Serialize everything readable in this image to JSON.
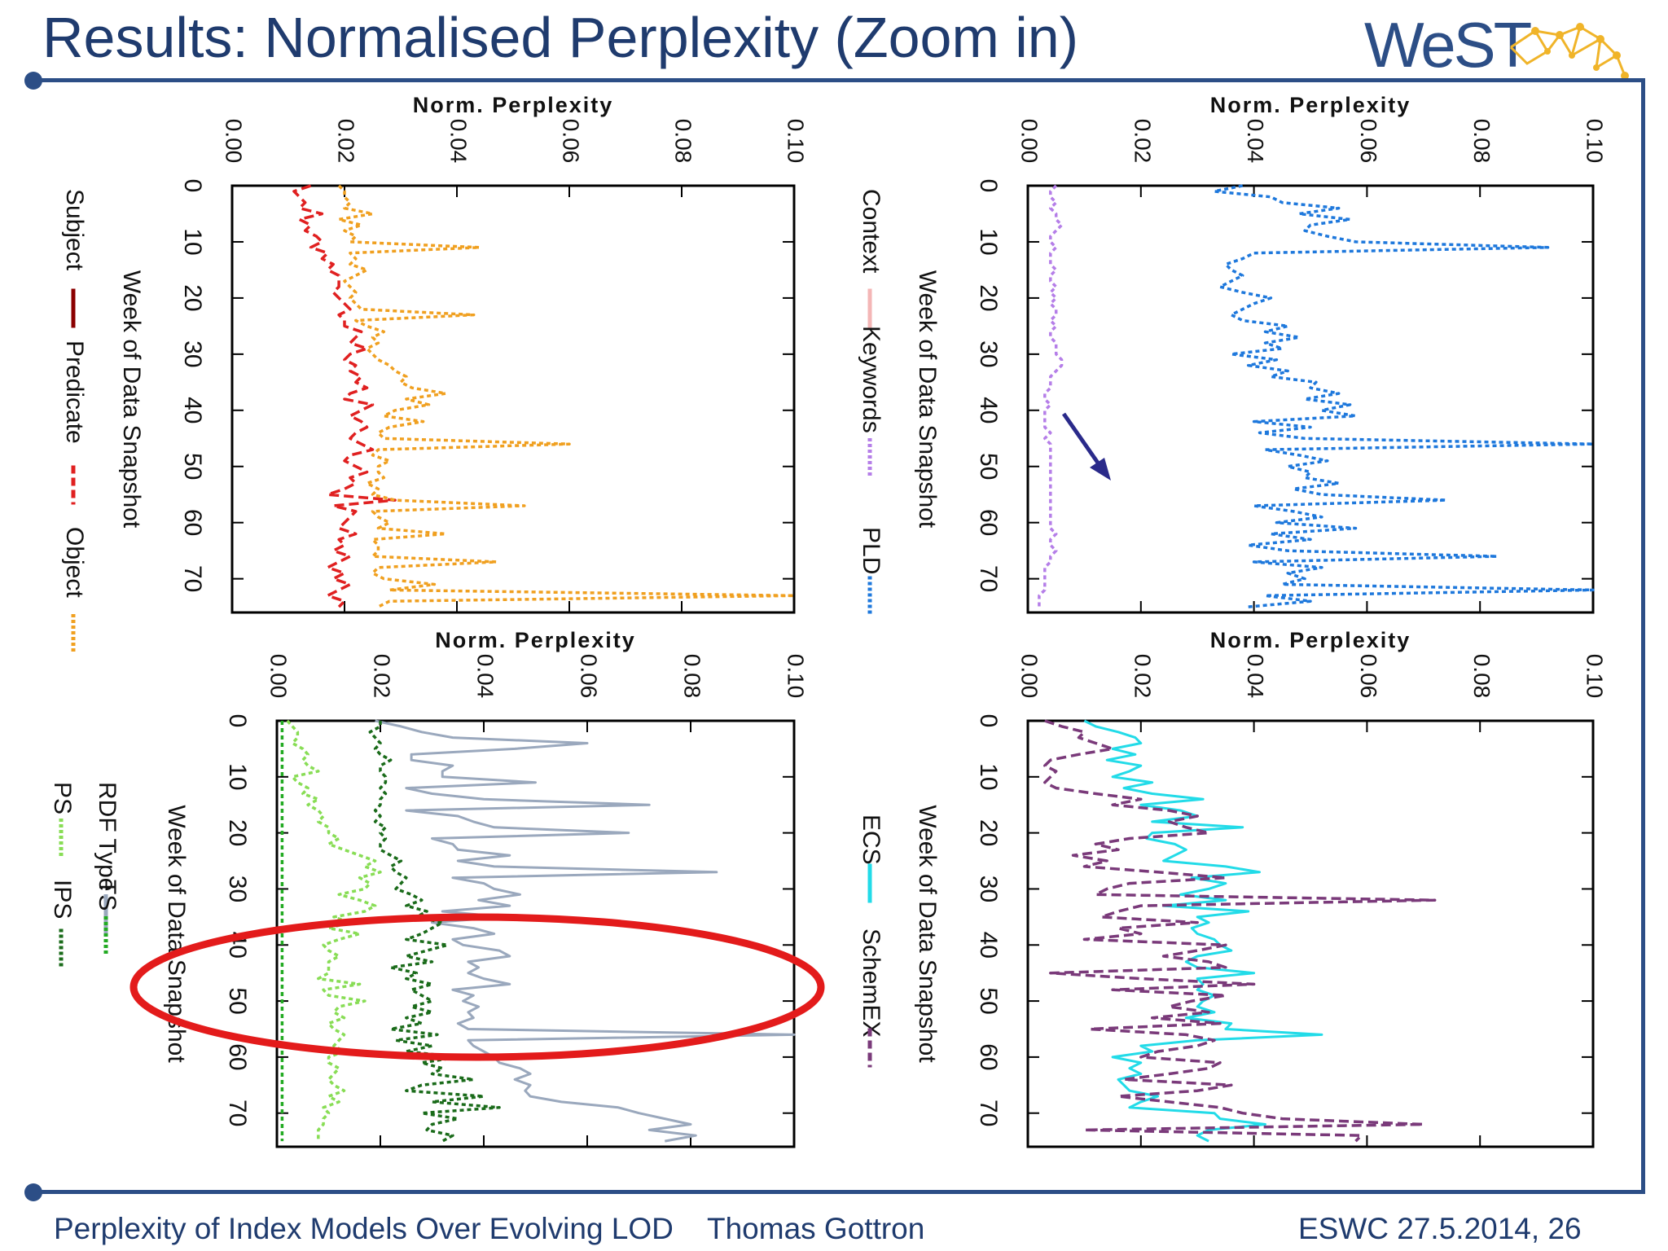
{
  "slide": {
    "title": "Results: Normalised Perplexity (Zoom in)",
    "logo_text": "WeST",
    "footer_left": "Perplexity of Index Models Over Evolving LOD",
    "footer_center": "Thomas Gottron",
    "footer_right": "ESWC 27.5.2014,  26",
    "colors": {
      "brand": "#2c4e86",
      "title": "#1f3b6e",
      "highlight": "#e31b1b"
    }
  },
  "annotations": {
    "arrow_note": "arrow pointing at Keywords series",
    "ellipse_note": "red ellipse highlighting weeks ~37-57"
  },
  "chart_data": [
    {
      "id": "top-left",
      "type": "line",
      "title": "Norm. Perplexity",
      "xlabel": "Week of Data Snapshot",
      "ylabel": "Norm. Perplexity",
      "xlim": [
        0,
        76
      ],
      "ylim": [
        0,
        0.1
      ],
      "xticks": [
        "0",
        "10",
        "20",
        "30",
        "40",
        "50",
        "60",
        "70"
      ],
      "yticks": [
        "0.00",
        "0.02",
        "0.04",
        "0.06",
        "0.08",
        "0.10"
      ],
      "series": [
        {
          "name": "Subject",
          "color": "#8b0000",
          "style": "solid",
          "points": [
            [
              0,
              0.018
            ],
            [
              2,
              0.019
            ],
            [
              4,
              0.018
            ]
          ]
        },
        {
          "name": "Predicate",
          "color": "#e02020",
          "style": "dashed",
          "values": [
            0.014,
            0.011,
            0.012,
            0.013,
            0.012,
            0.016,
            0.012,
            0.014,
            0.013,
            0.015,
            0.016,
            0.014,
            0.017,
            0.016,
            0.018,
            0.017,
            0.019,
            0.019,
            0.019,
            0.018,
            0.019,
            0.02,
            0.021,
            0.019,
            0.02,
            0.02,
            0.023,
            0.022,
            0.021,
            0.024,
            0.021,
            0.02,
            0.022,
            0.021,
            0.023,
            0.022,
            0.024,
            0.021,
            0.02,
            0.025,
            0.023,
            0.021,
            0.023,
            0.024,
            0.022,
            0.021,
            0.023,
            0.025,
            0.021,
            0.02,
            0.022,
            0.024,
            0.021,
            0.022,
            0.02,
            0.017,
            0.029,
            0.018,
            0.022,
            0.021,
            0.02,
            0.019,
            0.022,
            0.019,
            0.02,
            0.018,
            0.021,
            0.019,
            0.017,
            0.02,
            0.018,
            0.021,
            0.019,
            0.017,
            0.02,
            0.019
          ]
        },
        {
          "name": "Object",
          "color": "#f0a020",
          "style": "dotted",
          "values": [
            0.019,
            0.02,
            0.02,
            0.021,
            0.02,
            0.025,
            0.019,
            0.023,
            0.02,
            0.022,
            0.021,
            0.044,
            0.021,
            0.022,
            0.021,
            0.024,
            0.022,
            0.02,
            0.021,
            0.022,
            0.021,
            0.022,
            0.023,
            0.043,
            0.022,
            0.024,
            0.027,
            0.025,
            0.026,
            0.024,
            0.025,
            0.026,
            0.028,
            0.029,
            0.031,
            0.03,
            0.032,
            0.038,
            0.031,
            0.035,
            0.029,
            0.027,
            0.034,
            0.028,
            0.026,
            0.027,
            0.06,
            0.026,
            0.025,
            0.028,
            0.026,
            0.026,
            0.027,
            0.024,
            0.026,
            0.025,
            0.029,
            0.052,
            0.025,
            0.026,
            0.028,
            0.026,
            0.038,
            0.025,
            0.026,
            0.026,
            0.025,
            0.047,
            0.026,
            0.025,
            0.027,
            0.036,
            0.028,
            0.1,
            0.028,
            0.026
          ]
        }
      ]
    },
    {
      "id": "top-right",
      "type": "line",
      "title": "Norm. Perplexity",
      "xlabel": "Week of Data Snapshot",
      "ylabel": "Norm. Perplexity",
      "xlim": [
        0,
        76
      ],
      "ylim": [
        0,
        0.1
      ],
      "xticks": [
        "0",
        "10",
        "20",
        "30",
        "40",
        "50",
        "60",
        "70"
      ],
      "yticks": [
        "0.00",
        "0.02",
        "0.04",
        "0.06",
        "0.08",
        "0.10"
      ],
      "series": [
        {
          "name": "Context",
          "color": "#f4b6b6",
          "style": "solid",
          "values": []
        },
        {
          "name": "Keywords",
          "color": "#b57ee8",
          "style": "dotted",
          "values": [
            0.005,
            0.004,
            0.004,
            0.005,
            0.004,
            0.005,
            0.005,
            0.006,
            0.005,
            0.004,
            0.004,
            0.005,
            0.004,
            0.004,
            0.004,
            0.005,
            0.004,
            0.004,
            0.005,
            0.004,
            0.005,
            0.004,
            0.005,
            0.005,
            0.004,
            0.005,
            0.004,
            0.004,
            0.005,
            0.005,
            0.005,
            0.006,
            0.006,
            0.005,
            0.004,
            0.004,
            0.004,
            0.003,
            0.003,
            0.004,
            0.003,
            0.003,
            0.003,
            0.003,
            0.004,
            0.003,
            0.004,
            0.004,
            0.004,
            0.004,
            0.004,
            0.004,
            0.004,
            0.004,
            0.004,
            0.004,
            0.004,
            0.004,
            0.004,
            0.004,
            0.004,
            0.004,
            0.005,
            0.004,
            0.004,
            0.005,
            0.004,
            0.004,
            0.003,
            0.003,
            0.003,
            0.003,
            0.003,
            0.002,
            0.002,
            0.002
          ]
        },
        {
          "name": "PLD",
          "color": "#1e78dc",
          "style": "dotted",
          "values": [
            0.038,
            0.033,
            0.043,
            0.045,
            0.055,
            0.048,
            0.057,
            0.05,
            0.049,
            0.053,
            0.058,
            0.092,
            0.04,
            0.038,
            0.035,
            0.036,
            0.038,
            0.036,
            0.034,
            0.038,
            0.043,
            0.04,
            0.038,
            0.036,
            0.038,
            0.046,
            0.042,
            0.048,
            0.042,
            0.045,
            0.036,
            0.044,
            0.039,
            0.046,
            0.043,
            0.051,
            0.05,
            0.055,
            0.049,
            0.057,
            0.052,
            0.058,
            0.04,
            0.05,
            0.041,
            0.049,
            0.1,
            0.042,
            0.048,
            0.053,
            0.046,
            0.05,
            0.049,
            0.055,
            0.047,
            0.052,
            0.074,
            0.04,
            0.047,
            0.052,
            0.044,
            0.058,
            0.043,
            0.05,
            0.039,
            0.046,
            0.083,
            0.04,
            0.052,
            0.046,
            0.049,
            0.045,
            0.1,
            0.042,
            0.05,
            0.039
          ]
        }
      ]
    },
    {
      "id": "bottom-left",
      "type": "line",
      "title": "Norm. Perplexity",
      "xlabel": "Week of Data Snapshot",
      "ylabel": "Norm. Perplexity",
      "xlim": [
        0,
        76
      ],
      "ylim": [
        0,
        0.1
      ],
      "xticks": [
        "0",
        "10",
        "20",
        "30",
        "40",
        "50",
        "60",
        "70"
      ],
      "yticks": [
        "0.00",
        "0.02",
        "0.04",
        "0.06",
        "0.08",
        "0.10"
      ],
      "series": [
        {
          "name": "RDF Type",
          "color": "#9aa8bd",
          "style": "solid",
          "values": [
            0.019,
            0.024,
            0.028,
            0.034,
            0.06,
            0.046,
            0.026,
            0.026,
            0.034,
            0.032,
            0.032,
            0.05,
            0.025,
            0.03,
            0.04,
            0.072,
            0.025,
            0.035,
            0.038,
            0.042,
            0.068,
            0.03,
            0.034,
            0.035,
            0.045,
            0.035,
            0.042,
            0.085,
            0.034,
            0.04,
            0.042,
            0.047,
            0.039,
            0.045,
            0.032,
            0.044,
            0.03,
            0.038,
            0.042,
            0.034,
            0.036,
            0.043,
            0.045,
            0.037,
            0.039,
            0.037,
            0.04,
            0.045,
            0.034,
            0.038,
            0.036,
            0.039,
            0.037,
            0.038,
            0.035,
            0.037,
            0.1,
            0.037,
            0.038,
            0.04,
            0.042,
            0.043,
            0.047,
            0.049,
            0.046,
            0.049,
            0.048,
            0.049,
            0.055,
            0.066,
            0.07,
            0.075,
            0.08,
            0.072,
            0.081,
            0.075
          ]
        },
        {
          "name": "PS",
          "color": "#88dd55",
          "style": "dotted",
          "values": [
            0.002,
            0.003,
            0.004,
            0.004,
            0.003,
            0.005,
            0.006,
            0.005,
            0.006,
            0.008,
            0.003,
            0.004,
            0.006,
            0.005,
            0.008,
            0.006,
            0.008,
            0.009,
            0.008,
            0.01,
            0.01,
            0.012,
            0.01,
            0.013,
            0.016,
            0.019,
            0.017,
            0.02,
            0.016,
            0.018,
            0.017,
            0.012,
            0.016,
            0.019,
            0.017,
            0.011,
            0.014,
            0.01,
            0.016,
            0.012,
            0.009,
            0.01,
            0.012,
            0.01,
            0.01,
            0.01,
            0.008,
            0.016,
            0.009,
            0.01,
            0.017,
            0.012,
            0.011,
            0.013,
            0.01,
            0.011,
            0.013,
            0.012,
            0.011,
            0.013,
            0.01,
            0.01,
            0.012,
            0.011,
            0.01,
            0.011,
            0.013,
            0.01,
            0.012,
            0.009,
            0.01,
            0.009,
            0.009,
            0.008,
            0.008,
            0.008
          ]
        },
        {
          "name": "TS",
          "color": "#22aa22",
          "style": "dotted",
          "values": [
            0.001,
            0.001,
            0.001,
            0.001,
            0.001,
            0.001,
            0.001,
            0.001,
            0.001,
            0.001,
            0.001,
            0.001,
            0.001,
            0.001,
            0.001,
            0.001,
            0.001,
            0.001,
            0.001,
            0.001,
            0.001,
            0.001,
            0.001,
            0.001,
            0.001,
            0.001,
            0.001,
            0.001,
            0.001,
            0.001,
            0.001,
            0.001,
            0.001,
            0.001,
            0.001,
            0.001,
            0.001,
            0.001,
            0.001,
            0.001,
            0.001,
            0.001,
            0.001,
            0.001,
            0.001,
            0.001,
            0.001,
            0.001,
            0.001,
            0.001,
            0.001,
            0.001,
            0.001,
            0.001,
            0.001,
            0.001,
            0.001,
            0.001,
            0.001,
            0.001,
            0.001,
            0.001,
            0.001,
            0.001,
            0.001,
            0.001,
            0.001,
            0.001,
            0.001,
            0.001,
            0.001,
            0.001,
            0.001,
            0.001,
            0.001,
            0.001
          ]
        },
        {
          "name": "IPS",
          "color": "#1a6b1a",
          "style": "dotted",
          "values": [
            0.02,
            0.02,
            0.018,
            0.019,
            0.02,
            0.019,
            0.02,
            0.022,
            0.02,
            0.02,
            0.021,
            0.021,
            0.02,
            0.021,
            0.02,
            0.02,
            0.019,
            0.02,
            0.019,
            0.021,
            0.02,
            0.021,
            0.02,
            0.02,
            0.022,
            0.024,
            0.022,
            0.023,
            0.025,
            0.024,
            0.023,
            0.026,
            0.028,
            0.025,
            0.029,
            0.027,
            0.032,
            0.03,
            0.028,
            0.025,
            0.033,
            0.029,
            0.025,
            0.03,
            0.022,
            0.027,
            0.025,
            0.03,
            0.026,
            0.028,
            0.03,
            0.026,
            0.03,
            0.025,
            0.028,
            0.022,
            0.031,
            0.023,
            0.03,
            0.025,
            0.035,
            0.028,
            0.032,
            0.03,
            0.038,
            0.028,
            0.025,
            0.04,
            0.03,
            0.043,
            0.028,
            0.035,
            0.03,
            0.029,
            0.034,
            0.032
          ]
        }
      ]
    },
    {
      "id": "bottom-right",
      "type": "line",
      "title": "Norm. Perplexity",
      "xlabel": "Week of Data Snapshot",
      "ylabel": "Norm. Perplexity",
      "xlim": [
        0,
        76
      ],
      "ylim": [
        0,
        0.1
      ],
      "xticks": [
        "0",
        "10",
        "20",
        "30",
        "40",
        "50",
        "60",
        "70"
      ],
      "yticks": [
        "0.00",
        "0.02",
        "0.04",
        "0.06",
        "0.08",
        "0.10"
      ],
      "series": [
        {
          "name": "ECS",
          "color": "#22dbe8",
          "style": "solid",
          "values": [
            0.01,
            0.012,
            0.016,
            0.019,
            0.02,
            0.015,
            0.019,
            0.014,
            0.02,
            0.018,
            0.015,
            0.022,
            0.017,
            0.022,
            0.031,
            0.02,
            0.027,
            0.03,
            0.022,
            0.038,
            0.022,
            0.021,
            0.026,
            0.028,
            0.026,
            0.024,
            0.035,
            0.041,
            0.029,
            0.035,
            0.032,
            0.027,
            0.035,
            0.024,
            0.039,
            0.03,
            0.032,
            0.029,
            0.03,
            0.033,
            0.034,
            0.036,
            0.03,
            0.028,
            0.03,
            0.04,
            0.03,
            0.031,
            0.03,
            0.033,
            0.031,
            0.03,
            0.033,
            0.028,
            0.036,
            0.035,
            0.052,
            0.03,
            0.02,
            0.022,
            0.015,
            0.02,
            0.018,
            0.02,
            0.016,
            0.017,
            0.018,
            0.023,
            0.02,
            0.018,
            0.033,
            0.034,
            0.042,
            0.032,
            0.03,
            0.032
          ]
        },
        {
          "name": "SchemEX",
          "color": "#7a3a7a",
          "style": "dashed",
          "values": [
            0.003,
            0.006,
            0.01,
            0.009,
            0.012,
            0.015,
            0.009,
            0.004,
            0.003,
            0.005,
            0.004,
            0.003,
            0.005,
            0.012,
            0.02,
            0.015,
            0.025,
            0.03,
            0.025,
            0.028,
            0.032,
            0.018,
            0.012,
            0.016,
            0.008,
            0.014,
            0.01,
            0.023,
            0.035,
            0.018,
            0.014,
            0.012,
            0.072,
            0.02,
            0.016,
            0.013,
            0.03,
            0.016,
            0.02,
            0.01,
            0.035,
            0.03,
            0.024,
            0.032,
            0.035,
            0.004,
            0.02,
            0.04,
            0.015,
            0.035,
            0.029,
            0.025,
            0.032,
            0.022,
            0.034,
            0.011,
            0.028,
            0.033,
            0.03,
            0.023,
            0.02,
            0.034,
            0.032,
            0.025,
            0.017,
            0.036,
            0.03,
            0.016,
            0.025,
            0.034,
            0.038,
            0.045,
            0.07,
            0.01,
            0.059,
            0.058
          ]
        }
      ]
    }
  ]
}
